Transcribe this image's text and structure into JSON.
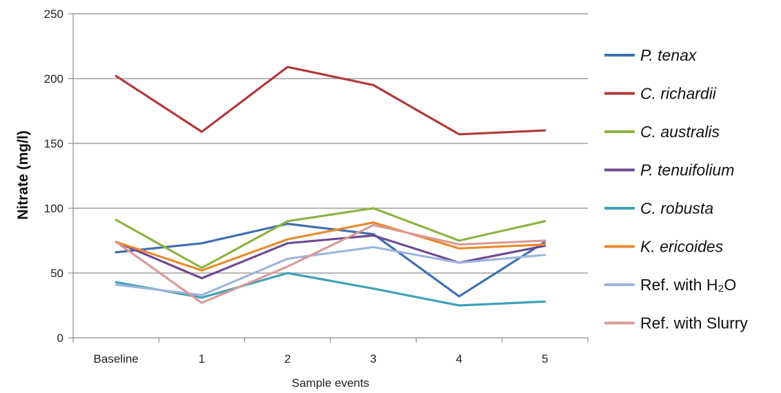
{
  "chart_data": {
    "type": "line",
    "title": "",
    "xlabel": "Sample events",
    "ylabel": "Nitrate (mg/l)",
    "categories": [
      "Baseline",
      "1",
      "2",
      "3",
      "4",
      "5"
    ],
    "ylim": [
      0,
      250
    ],
    "yticks": [
      0,
      50,
      100,
      150,
      200,
      250
    ],
    "grid": "horizontal",
    "legend_position": "right",
    "series": [
      {
        "name": "P. tenax",
        "italic": true,
        "color": "#3f6fb0",
        "values": [
          66,
          73,
          88,
          80,
          32,
          74
        ]
      },
      {
        "name": "C. richardii",
        "italic": true,
        "color": "#b03a38",
        "values": [
          202,
          159,
          209,
          195,
          157,
          160
        ]
      },
      {
        "name": "C. australis",
        "italic": true,
        "color": "#8db343",
        "values": [
          91,
          54,
          90,
          100,
          75,
          90
        ]
      },
      {
        "name": "P. tenuifolium",
        "italic": true,
        "color": "#6e4a92",
        "values": [
          74,
          46,
          73,
          79,
          58,
          71
        ]
      },
      {
        "name": "C. robusta",
        "italic": true,
        "color": "#3ea1b7",
        "values": [
          43,
          31,
          50,
          38,
          25,
          28
        ]
      },
      {
        "name": "K. ericoides",
        "italic": true,
        "color": "#e98a2c",
        "values": [
          74,
          52,
          76,
          89,
          69,
          72
        ]
      },
      {
        "name": "Ref. with H₂O",
        "italic": false,
        "color": "#9fb4dc",
        "values": [
          41,
          33,
          61,
          70,
          58,
          64
        ]
      },
      {
        "name": "Ref. with Slurry",
        "italic": false,
        "color": "#d99a98",
        "values": [
          74,
          27,
          55,
          87,
          72,
          75
        ]
      }
    ]
  }
}
